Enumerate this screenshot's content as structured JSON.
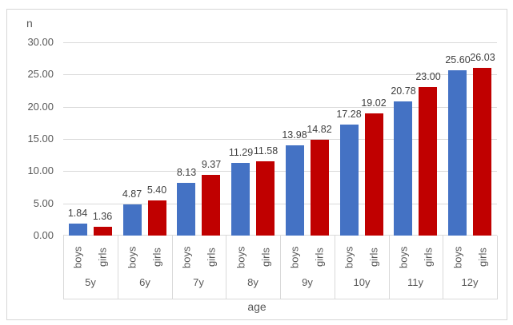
{
  "chart_data": {
    "type": "bar",
    "title": "",
    "ylabel": "n",
    "xlabel": "age",
    "categories": [
      "5y",
      "6y",
      "7y",
      "8y",
      "9y",
      "10y",
      "11y",
      "12y"
    ],
    "series": [
      {
        "name": "boys",
        "color": "#4472C4",
        "values": [
          1.84,
          4.87,
          8.13,
          11.29,
          13.98,
          17.28,
          20.78,
          25.6
        ]
      },
      {
        "name": "girls",
        "color": "#C00000",
        "values": [
          1.36,
          5.4,
          9.37,
          11.58,
          14.82,
          19.02,
          23.0,
          26.03
        ]
      }
    ],
    "value_labels": {
      "boys": [
        "1.84",
        "4.87",
        "8.13",
        "11.29",
        "13.98",
        "17.28",
        "20.78",
        "25.60"
      ],
      "girls": [
        "1.36",
        "5.40",
        "9.37",
        "11.58",
        "14.82",
        "19.02",
        "23.00",
        "26.03"
      ]
    },
    "ylim": [
      0,
      30
    ],
    "ytick_step": 5,
    "yticks": [
      "30.00",
      "25.00",
      "20.00",
      "15.00",
      "10.00",
      "5.00",
      "0.00"
    ],
    "grid": true,
    "legend_position": "none"
  },
  "theme": {
    "bar_blue": "#4472C4",
    "bar_red": "#C00000",
    "grid_color": "#d9d9d9",
    "axis_text_color": "#595959",
    "value_label_color": "#404040",
    "frame_border_color": "#d6d6d6",
    "background": "#ffffff"
  }
}
